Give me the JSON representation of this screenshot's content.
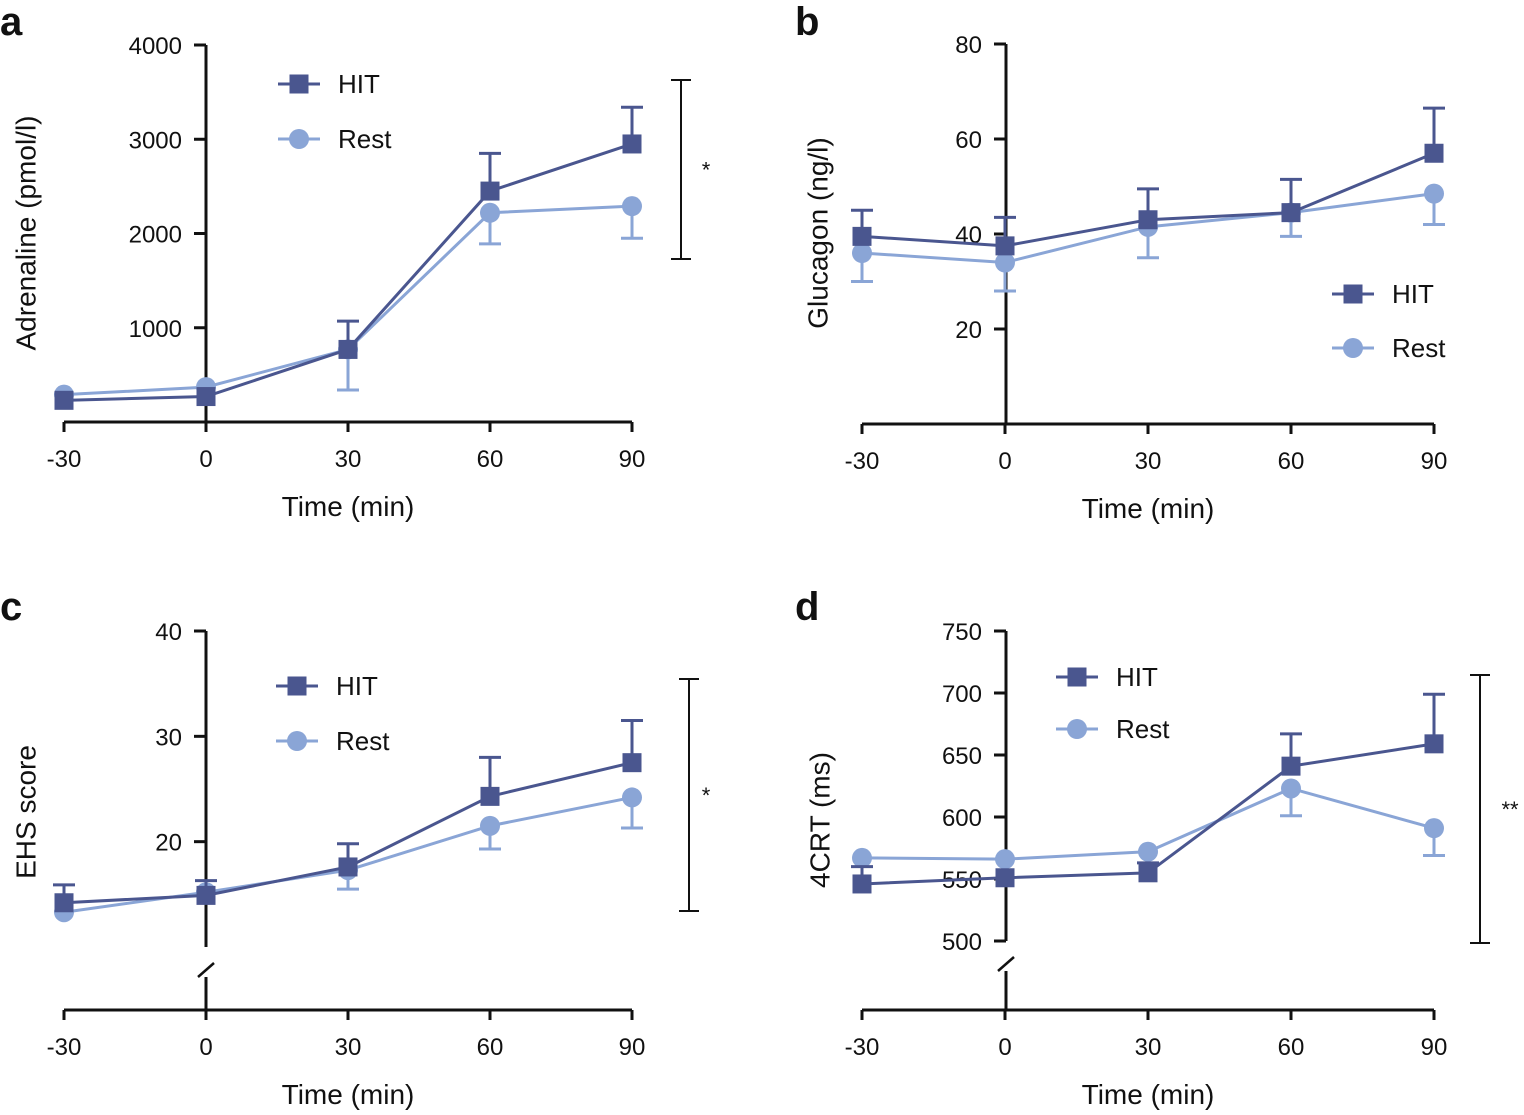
{
  "colors": {
    "hit": "#4a568f",
    "rest": "#8aa5d6",
    "axis": "#111111"
  },
  "chart_data": [
    {
      "panel": "a",
      "type": "line",
      "x": [
        -30,
        0,
        30,
        60,
        90
      ],
      "x_ticks": [
        -30,
        0,
        30,
        60,
        90
      ],
      "xlabel": "Time (min)",
      "ylabel": "Adrenaline (pmol/l)",
      "ylim": [
        0,
        4000
      ],
      "y_ticks": [
        1000,
        2000,
        3000,
        4000
      ],
      "y_break": false,
      "legend": {
        "position": "top-left",
        "hit": "HIT",
        "rest": "Rest"
      },
      "significance": "*",
      "series": [
        {
          "name": "HIT",
          "values": [
            230,
            270,
            770,
            2450,
            2950
          ],
          "err": [
            0,
            0,
            300,
            400,
            390
          ],
          "err_dir": "up"
        },
        {
          "name": "Rest",
          "values": [
            290,
            370,
            770,
            2220,
            2290
          ],
          "err": [
            0,
            0,
            430,
            330,
            340
          ],
          "err_dir": "down"
        }
      ]
    },
    {
      "panel": "b",
      "type": "line",
      "x": [
        -30,
        0,
        30,
        60,
        90
      ],
      "x_ticks": [
        -30,
        0,
        30,
        60,
        90
      ],
      "xlabel": "Time (min)",
      "ylabel": "Glucagon (ng/l)",
      "ylim": [
        0,
        80
      ],
      "y_ticks": [
        20,
        40,
        60,
        80
      ],
      "y_break": false,
      "legend": {
        "position": "bottom-right",
        "hit": "HIT",
        "rest": "Rest"
      },
      "significance": "",
      "series": [
        {
          "name": "HIT",
          "values": [
            39.5,
            37.5,
            43,
            44.5,
            57
          ],
          "err": [
            5.5,
            6,
            6.5,
            7,
            9.5
          ],
          "err_dir": "up"
        },
        {
          "name": "Rest",
          "values": [
            36,
            34,
            41.5,
            44.5,
            48.5
          ],
          "err": [
            6,
            6,
            6.5,
            5,
            6.5
          ],
          "err_dir": "down"
        }
      ]
    },
    {
      "panel": "c",
      "type": "line",
      "x": [
        -30,
        0,
        30,
        60,
        90
      ],
      "x_ticks": [
        -30,
        0,
        30,
        60,
        90
      ],
      "xlabel": "Time (min)",
      "ylabel": "EHS score",
      "ylim": [
        10,
        40
      ],
      "y_ticks": [
        20,
        30,
        40
      ],
      "y_break": true,
      "legend": {
        "position": "top-left",
        "hit": "HIT",
        "rest": "Rest"
      },
      "significance": "*",
      "series": [
        {
          "name": "HIT",
          "values": [
            14.2,
            14.9,
            17.6,
            24.3,
            27.5
          ],
          "err": [
            1.7,
            1.4,
            2.2,
            3.7,
            4.0
          ],
          "err_dir": "up"
        },
        {
          "name": "Rest",
          "values": [
            13.3,
            15.2,
            17.3,
            21.5,
            24.2
          ],
          "err": [
            0,
            0,
            1.8,
            2.2,
            2.9
          ],
          "err_dir": "down"
        }
      ]
    },
    {
      "panel": "d",
      "type": "line",
      "x": [
        -30,
        0,
        30,
        60,
        90
      ],
      "x_ticks": [
        -30,
        0,
        30,
        60,
        90
      ],
      "xlabel": "Time (min)",
      "ylabel": "4CRT (ms)",
      "ylim": [
        500,
        750
      ],
      "y_ticks": [
        500,
        550,
        600,
        650,
        700,
        750
      ],
      "y_break": true,
      "legend": {
        "position": "top-left",
        "hit": "HIT",
        "rest": "Rest"
      },
      "significance": "**",
      "series": [
        {
          "name": "HIT",
          "values": [
            546,
            551,
            555,
            641,
            659
          ],
          "err": [
            14,
            0,
            8,
            26,
            40
          ],
          "err_dir": "up"
        },
        {
          "name": "Rest",
          "values": [
            567,
            566,
            572,
            623,
            591
          ],
          "err": [
            0,
            0,
            0,
            22,
            22
          ],
          "err_dir": "down"
        }
      ]
    }
  ]
}
